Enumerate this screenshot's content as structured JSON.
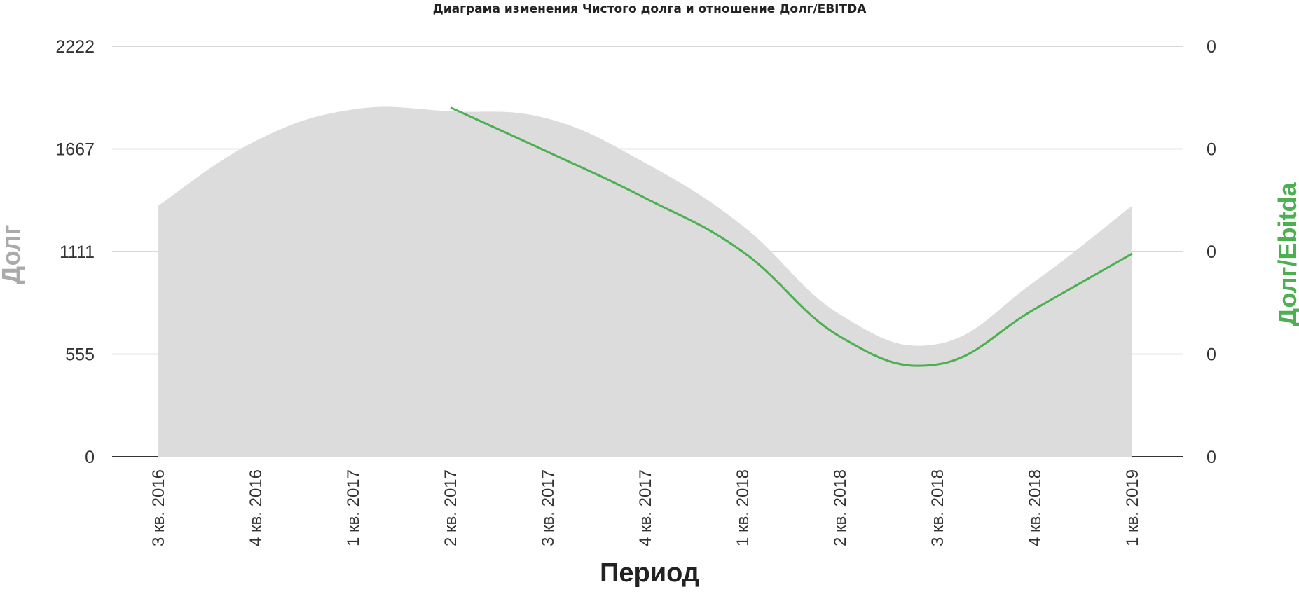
{
  "chart_data": {
    "type": "area",
    "title": "Диаграма изменения Чистого долга и отношение Долг/EBITDA",
    "xlabel": "Период",
    "ylabel_left": "Долг",
    "ylabel_right": "Долг/Ebitda",
    "categories": [
      "3 кв. 2016",
      "4 кв. 2016",
      "1 кв. 2017",
      "2 кв. 2017",
      "3 кв. 2017",
      "4 кв. 2017",
      "1 кв. 2018",
      "2 кв. 2018",
      "3 кв. 2018",
      "4 кв. 2018",
      "1 кв. 2019"
    ],
    "left_axis": {
      "ticks": [
        "0",
        "555",
        "1111",
        "1667",
        "2222"
      ],
      "ylim": [
        0,
        2222
      ]
    },
    "right_axis": {
      "ticks": [
        "0",
        "0",
        "0",
        "0",
        "0"
      ]
    },
    "series": [
      {
        "name": "Долг",
        "kind": "area",
        "color": "#dcdcdc",
        "values": [
          1360,
          1710,
          1880,
          1870,
          1830,
          1590,
          1250,
          770,
          610,
          950,
          1360
        ]
      },
      {
        "name": "Долг/Ebitda",
        "kind": "line",
        "color": "#4caf50",
        "axis": "right",
        "values": [
          null,
          null,
          null,
          1890,
          1650,
          1400,
          1110,
          650,
          500,
          800,
          1100
        ]
      }
    ],
    "grid": true,
    "legend": "none"
  }
}
